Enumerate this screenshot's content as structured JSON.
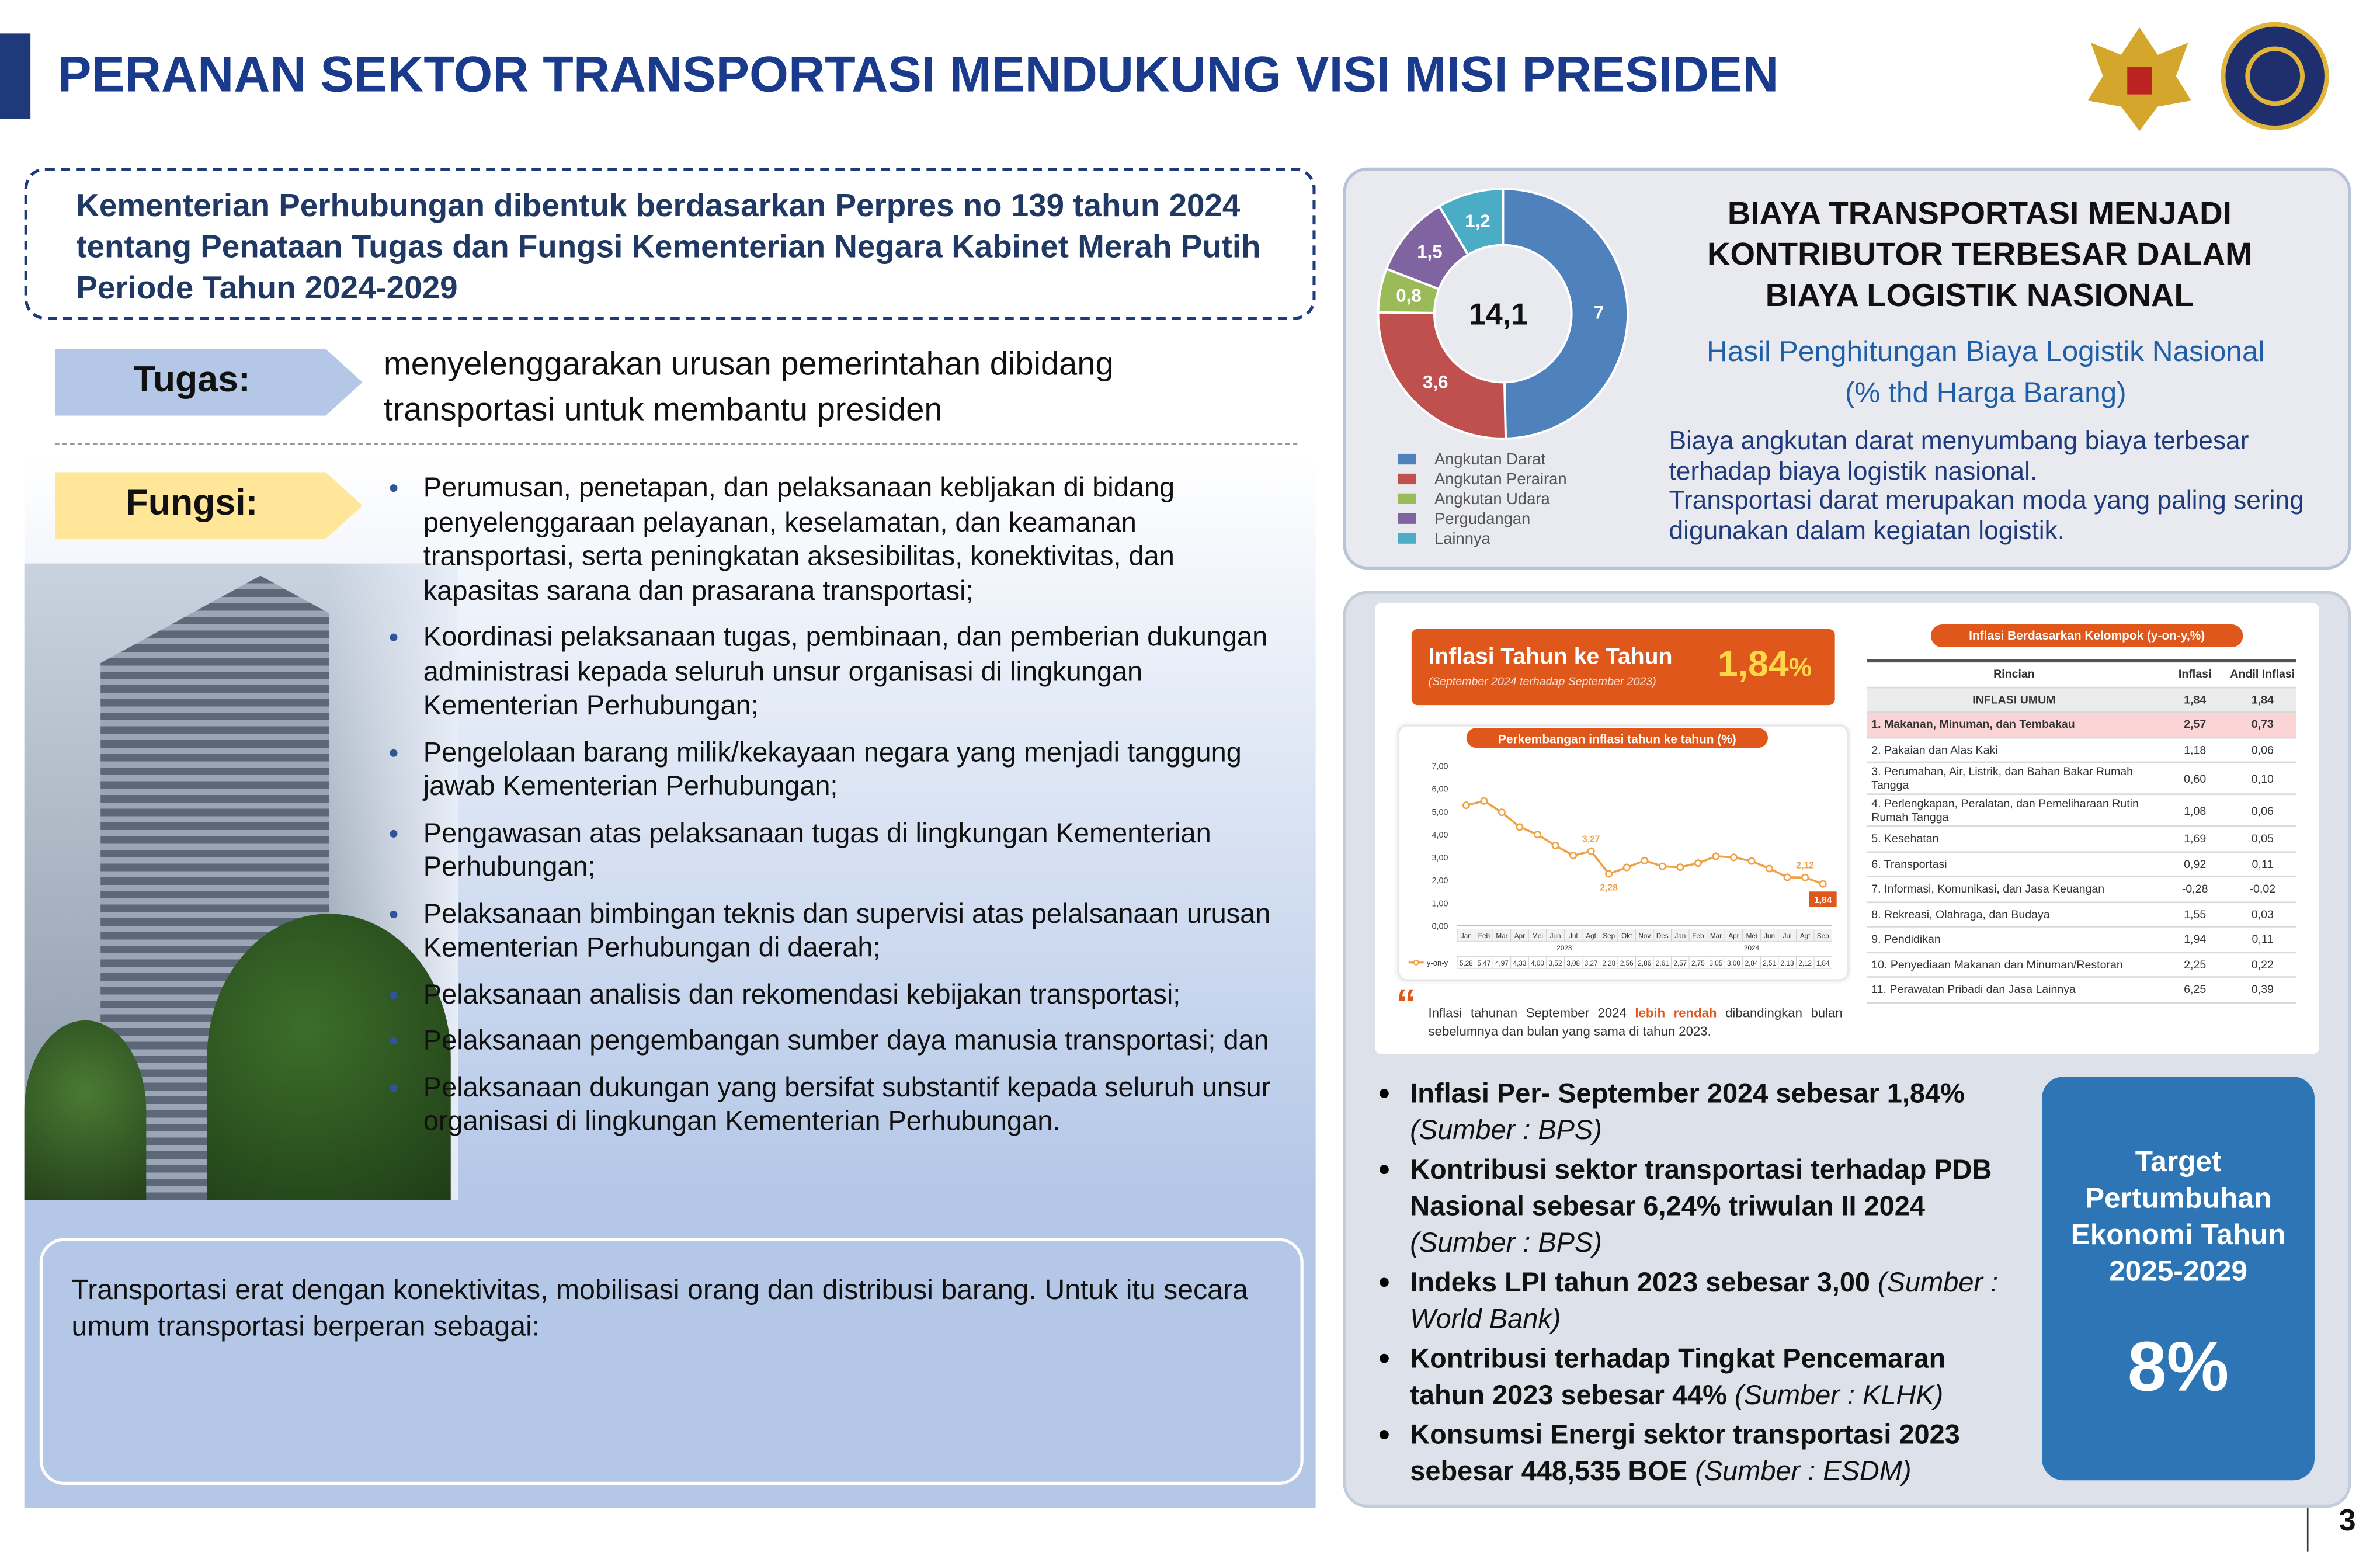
{
  "header": {
    "title": "PERANAN SEKTOR TRANSPORTASI MENDUKUNG VISI MISI PRESIDEN",
    "page_number": "3"
  },
  "intro": "Kementerian Perhubungan dibentuk berdasarkan Perpres no 139 tahun 2024 tentang Penataan Tugas dan Fungsi Kementerian Negara Kabinet Merah Putih Periode Tahun 2024-2029",
  "tugas": {
    "label": "Tugas:",
    "text": "menyelenggarakan urusan pemerintahan dibidang transportasi untuk membantu presiden"
  },
  "fungsi": {
    "label": "Fungsi:",
    "items": [
      "Perumusan, penetapan, dan pelaksanaan kebljakan di bidang penyelenggaraan pelayanan, keselamatan, dan keamanan transportasi, serta peningkatan aksesibilitas, konektivitas, dan kapasitas sarana dan prasarana transportasi;",
      "Koordinasi pelaksanaan tugas, pembinaan, dan pemberian dukungan administrasi kepada seluruh unsur organisasi di lingkungan Kementerian Perhubungan;",
      "Pengelolaan barang milik/kekayaan negara yang menjadi tanggung jawab Kementerian Perhubungan;",
      "Pengawasan atas pelaksanaan tugas di lingkungan Kementerian Perhubungan;",
      "Pelaksanaan bimbingan teknis dan supervisi atas pelalsanaan urusan Kementerian Perhubungan di daerah;",
      "Pelaksanaan analisis dan rekomendasi kebijakan transportasi;",
      "Pelaksanaan pengembangan sumber daya manusia transportasi; dan",
      "Pelaksanaan dukungan yang bersifat substantif kepada seluruh unsur organisasi di lingkungan Kementerian Perhubungan."
    ]
  },
  "role_box": "Transportasi erat dengan konektivitas, mobilisasi orang dan distribusi barang. Untuk itu secara umum transportasi berperan sebagai:",
  "logistics": {
    "title": [
      "BIAYA TRANSPORTASI MENJADI",
      "KONTRIBUTOR TERBESAR DALAM",
      "BIAYA LOGISTIK NASIONAL"
    ],
    "subtitle": [
      "Hasil Penghitungan Biaya Logistik  Nasional",
      "(% thd Harga Barang)"
    ],
    "description": [
      "Biaya angkutan darat menyumbang biaya  terbesar terhadap biaya logistik nasional.",
      "Transportasi darat merupakan moda  yang paling sering digunakan dalam  kegiatan logistik."
    ],
    "chart": {
      "type": "pie",
      "categories": [
        "Angkutan Darat",
        "Angkutan Perairan",
        "Angkutan Udara",
        "Pergudangan",
        "Lainnya"
      ],
      "values": [
        7,
        3.6,
        0.8,
        1.5,
        1.2
      ],
      "value_labels": [
        "7",
        "3,6",
        "0,8",
        "1,5",
        "1,2"
      ],
      "colors": [
        "#4f81bd",
        "#c0504d",
        "#9bbb59",
        "#8064a2",
        "#4bacc6"
      ],
      "total_label": "14,1"
    }
  },
  "inflation": {
    "title": "Inflasi Tahun ke Tahun",
    "subtitle": "(September 2024 terhadap September 2023)",
    "value": "1,84",
    "unit": "%",
    "chart": {
      "type": "line",
      "title": "Perkembangan inflasi tahun ke tahun (%)",
      "categories": [
        "Jan",
        "Feb",
        "Mar",
        "Apr",
        "Mei",
        "Jun",
        "Jul",
        "Agt",
        "Sep",
        "Okt",
        "Nov",
        "Des",
        "Jan",
        "Feb",
        "Mar",
        "Apr",
        "Mei",
        "Jun",
        "Jul",
        "Agt",
        "Sep"
      ],
      "years": [
        "2023",
        "2024"
      ],
      "series": [
        {
          "name": "y-on-y",
          "color": "#f0a045",
          "values": [
            5.28,
            5.47,
            4.97,
            4.33,
            4.0,
            3.52,
            3.08,
            3.27,
            2.28,
            2.56,
            2.86,
            2.61,
            2.57,
            2.75,
            3.05,
            3.0,
            2.84,
            2.51,
            2.13,
            2.12,
            1.84
          ],
          "value_labels": [
            "5,28",
            "5,47",
            "4,97",
            "4,33",
            "4,00",
            "3,52",
            "3,08",
            "3,27",
            "2,28",
            "2,56",
            "2,86",
            "2,61",
            "2,57",
            "2,75",
            "3,05",
            "3,00",
            "2,84",
            "2,51",
            "2,13",
            "2,12",
            "1,84"
          ],
          "callouts": [
            null,
            null,
            null,
            null,
            null,
            null,
            null,
            "3,27",
            "2,28",
            null,
            null,
            null,
            null,
            null,
            null,
            null,
            null,
            null,
            null,
            "2,12",
            "1,84"
          ]
        }
      ],
      "ylim": [
        0,
        7
      ],
      "yticks": [
        {
          "value": 0,
          "label": "0,00"
        },
        {
          "value": 1,
          "label": "1,00"
        },
        {
          "value": 2,
          "label": "2,00"
        },
        {
          "value": 3,
          "label": "3,00"
        },
        {
          "value": 4,
          "label": "4,00"
        },
        {
          "value": 5,
          "label": "5,00"
        },
        {
          "value": 6,
          "label": "6,00"
        },
        {
          "value": 7,
          "label": "7,00"
        }
      ],
      "grid": false
    },
    "quote": {
      "before": "Inflasi tahunan September 2024",
      "highlight": "lebih rendah",
      "after": "dibandingkan bulan sebelumnya dan bulan yang sama di tahun 2023."
    },
    "table": {
      "title": "Inflasi Berdasarkan Kelompok (y-on-y,%)",
      "columns": [
        "Rincian",
        "Inflasi",
        "Andil Inflasi"
      ],
      "rows": [
        [
          "INFLASI UMUM",
          "1,84",
          "1,84"
        ],
        [
          "1. Makanan, Minuman, dan Tembakau",
          "2,57",
          "0,73"
        ],
        [
          "2. Pakaian dan Alas Kaki",
          "1,18",
          "0,06"
        ],
        [
          "3. Perumahan, Air, Listrik, dan Bahan Bakar Rumah Tangga",
          "0,60",
          "0,10"
        ],
        [
          "4. Perlengkapan, Peralatan, dan Pemeliharaan Rutin Rumah Tangga",
          "1,08",
          "0,06"
        ],
        [
          "5. Kesehatan",
          "1,69",
          "0,05"
        ],
        [
          "6. Transportasi",
          "0,92",
          "0,11"
        ],
        [
          "7. Informasi, Komunikasi, dan Jasa Keuangan",
          "-0,28",
          "-0,02"
        ],
        [
          "8. Rekreasi, Olahraga, dan Budaya",
          "1,55",
          "0,03"
        ],
        [
          "9. Pendidikan",
          "1,94",
          "0,11"
        ],
        [
          "10. Penyediaan Makanan dan Minuman/Restoran",
          "2,25",
          "0,22"
        ],
        [
          "11. Perawatan Pribadi dan Jasa Lainnya",
          "6,25",
          "0,39"
        ]
      ]
    }
  },
  "indicators": [
    {
      "text": "Inflasi Per- September 2024 sebesar 1,84%",
      "source": "(Sumber : BPS)"
    },
    {
      "text": "Kontribusi sektor transportasi terhadap PDB Nasional sebesar 6,24% triwulan II 2024",
      "source": "(Sumber : BPS)"
    },
    {
      "text": "Indeks LPI tahun 2023 sebesar 3,00",
      "source": "(Sumber : World Bank)"
    },
    {
      "text": "Kontribusi terhadap Tingkat Pencemaran tahun 2023 sebesar 44%",
      "source": "(Sumber : KLHK)"
    },
    {
      "text": "Konsumsi Energi sektor transportasi 2023 sebesar 448,535 BOE",
      "source": "(Sumber : ESDM)"
    }
  ],
  "target": {
    "label": "Target Pertumbuhan Ekonomi Tahun 2025-2029",
    "value": "8%"
  }
}
